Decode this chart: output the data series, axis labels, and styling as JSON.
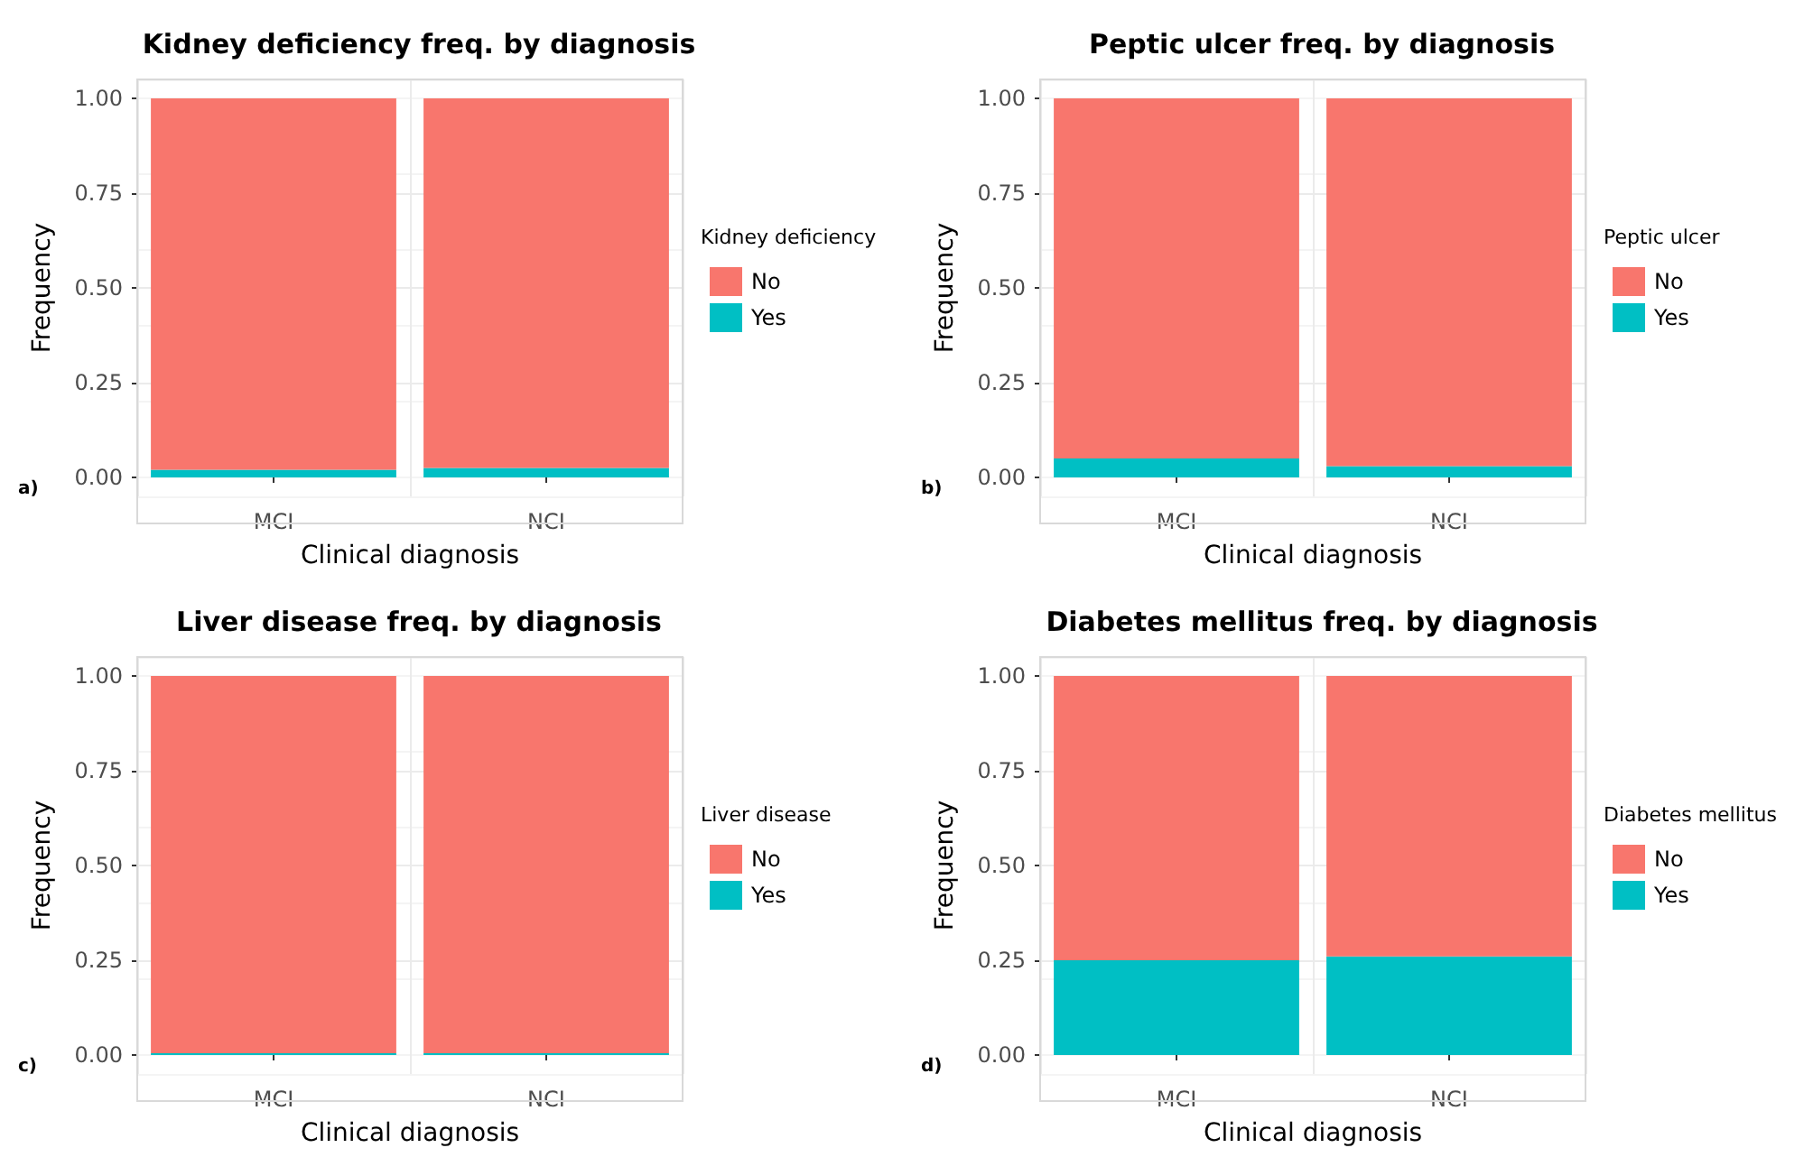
{
  "chart_data": [
    {
      "type": "bar",
      "title": "Kidney deficiency freq. by diagnosis",
      "xlabel": "Clinical diagnosis",
      "ylabel": "Frequency",
      "legend_title": "Kidney deficiency",
      "annotations": [
        "a)"
      ],
      "categories": [
        "MCI",
        "NCI"
      ],
      "stacked": true,
      "grid": true,
      "legend": "right",
      "series": [
        {
          "name": "Yes",
          "color": "#00bfc4",
          "values": [
            0.02,
            0.025
          ]
        },
        {
          "name": "No",
          "color": "#f8766d",
          "values": [
            0.98,
            0.975
          ]
        }
      ],
      "ylim": [
        -0.05,
        1.05
      ],
      "yticks": [
        {
          "value": 0,
          "label": "0.00"
        },
        {
          "value": 0.25,
          "label": "0.25"
        },
        {
          "value": 0.5,
          "label": "0.50"
        },
        {
          "value": 0.75,
          "label": "0.75"
        },
        {
          "value": 1,
          "label": "1.00"
        }
      ]
    },
    {
      "type": "bar",
      "title": "Peptic ulcer freq. by diagnosis",
      "xlabel": "Clinical diagnosis",
      "ylabel": "Frequency",
      "legend_title": "Peptic ulcer",
      "annotations": [
        "b)"
      ],
      "categories": [
        "MCI",
        "NCI"
      ],
      "stacked": true,
      "grid": true,
      "legend": "right",
      "series": [
        {
          "name": "Yes",
          "color": "#00bfc4",
          "values": [
            0.05,
            0.03
          ]
        },
        {
          "name": "No",
          "color": "#f8766d",
          "values": [
            0.95,
            0.97
          ]
        }
      ],
      "ylim": [
        -0.05,
        1.05
      ],
      "yticks": [
        {
          "value": 0,
          "label": "0.00"
        },
        {
          "value": 0.25,
          "label": "0.25"
        },
        {
          "value": 0.5,
          "label": "0.50"
        },
        {
          "value": 0.75,
          "label": "0.75"
        },
        {
          "value": 1,
          "label": "1.00"
        }
      ]
    },
    {
      "type": "bar",
      "title": "Liver disease freq. by diagnosis",
      "xlabel": "Clinical diagnosis",
      "ylabel": "Frequency",
      "legend_title": "Liver disease",
      "annotations": [
        "c)"
      ],
      "categories": [
        "MCI",
        "NCI"
      ],
      "stacked": true,
      "grid": true,
      "legend": "right",
      "series": [
        {
          "name": "Yes",
          "color": "#00bfc4",
          "values": [
            0.005,
            0.005
          ]
        },
        {
          "name": "No",
          "color": "#f8766d",
          "values": [
            0.995,
            0.995
          ]
        }
      ],
      "ylim": [
        -0.05,
        1.05
      ],
      "yticks": [
        {
          "value": 0,
          "label": "0.00"
        },
        {
          "value": 0.25,
          "label": "0.25"
        },
        {
          "value": 0.5,
          "label": "0.50"
        },
        {
          "value": 0.75,
          "label": "0.75"
        },
        {
          "value": 1,
          "label": "1.00"
        }
      ]
    },
    {
      "type": "bar",
      "title": "Diabetes mellitus freq. by diagnosis",
      "xlabel": "Clinical diagnosis",
      "ylabel": "Frequency",
      "legend_title": "Diabetes mellitus",
      "annotations": [
        "d)"
      ],
      "categories": [
        "MCI",
        "NCI"
      ],
      "stacked": true,
      "grid": true,
      "legend": "right",
      "series": [
        {
          "name": "Yes",
          "color": "#00bfc4",
          "values": [
            0.25,
            0.26
          ]
        },
        {
          "name": "No",
          "color": "#f8766d",
          "values": [
            0.75,
            0.74
          ]
        }
      ],
      "ylim": [
        -0.05,
        1.05
      ],
      "yticks": [
        {
          "value": 0,
          "label": "0.00"
        },
        {
          "value": 0.25,
          "label": "0.25"
        },
        {
          "value": 0.5,
          "label": "0.50"
        },
        {
          "value": 0.75,
          "label": "0.75"
        },
        {
          "value": 1,
          "label": "1.00"
        }
      ]
    }
  ]
}
